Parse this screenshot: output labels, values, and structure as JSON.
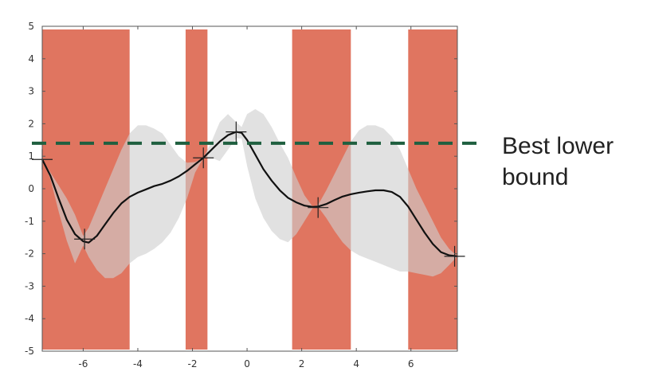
{
  "chart_data": {
    "type": "line",
    "xlim": [
      -7.5,
      7.7
    ],
    "ylim": [
      -5,
      5
    ],
    "xticks": [
      -6,
      -4,
      -2,
      0,
      2,
      4,
      6
    ],
    "yticks": [
      5,
      4,
      3,
      2,
      1,
      0,
      -1,
      -2,
      -3,
      -4,
      -5
    ],
    "grid": false,
    "legend": "none",
    "pruned_regions": [
      {
        "x0": -7.5,
        "x1": -4.3
      },
      {
        "x0": -2.25,
        "x1": -1.45
      },
      {
        "x0": 1.65,
        "x1": 3.8
      },
      {
        "x0": 5.9,
        "x1": 7.7
      }
    ],
    "mean_curve": {
      "x": [
        -7.5,
        -7.2,
        -6.9,
        -6.6,
        -6.3,
        -6.0,
        -5.8,
        -5.5,
        -5.2,
        -4.9,
        -4.6,
        -4.3,
        -4.0,
        -3.7,
        -3.4,
        -3.1,
        -2.8,
        -2.5,
        -2.2,
        -1.9,
        -1.6,
        -1.3,
        -1.0,
        -0.7,
        -0.4,
        -0.2,
        0.0,
        0.3,
        0.6,
        0.9,
        1.2,
        1.5,
        1.8,
        2.1,
        2.4,
        2.6,
        2.9,
        3.2,
        3.5,
        3.8,
        4.1,
        4.4,
        4.7,
        5.0,
        5.3,
        5.6,
        5.9,
        6.2,
        6.5,
        6.8,
        7.1,
        7.4,
        7.7
      ],
      "y": [
        0.9,
        0.4,
        -0.3,
        -0.95,
        -1.4,
        -1.62,
        -1.66,
        -1.45,
        -1.1,
        -0.75,
        -0.45,
        -0.25,
        -0.12,
        -0.02,
        0.08,
        0.15,
        0.25,
        0.38,
        0.55,
        0.75,
        0.95,
        1.2,
        1.45,
        1.65,
        1.75,
        1.72,
        1.5,
        1.05,
        0.6,
        0.25,
        -0.05,
        -0.28,
        -0.42,
        -0.52,
        -0.56,
        -0.55,
        -0.47,
        -0.35,
        -0.24,
        -0.17,
        -0.12,
        -0.08,
        -0.05,
        -0.05,
        -0.1,
        -0.25,
        -0.55,
        -0.95,
        -1.35,
        -1.7,
        -1.95,
        -2.05,
        -2.08
      ]
    },
    "uncertainty_band": {
      "x": [
        -7.5,
        -7.2,
        -6.9,
        -6.6,
        -6.3,
        -6.0,
        -5.8,
        -5.5,
        -5.2,
        -4.9,
        -4.6,
        -4.3,
        -4.0,
        -3.7,
        -3.4,
        -3.1,
        -2.8,
        -2.5,
        -2.2,
        -1.9,
        -1.6,
        -1.3,
        -1.0,
        -0.7,
        -0.4,
        -0.2,
        0.0,
        0.3,
        0.6,
        0.9,
        1.2,
        1.5,
        1.8,
        2.1,
        2.4,
        2.6,
        2.9,
        3.2,
        3.5,
        3.8,
        4.1,
        4.4,
        4.7,
        5.0,
        5.3,
        5.6,
        5.9,
        6.2,
        6.5,
        6.8,
        7.1,
        7.4,
        7.7
      ],
      "upper": [
        0.9,
        0.5,
        0.1,
        -0.3,
        -0.8,
        -1.45,
        -1.2,
        -0.6,
        0.0,
        0.6,
        1.2,
        1.7,
        1.95,
        1.95,
        1.85,
        1.7,
        1.35,
        1.0,
        0.8,
        0.82,
        0.95,
        1.45,
        2.05,
        2.3,
        2.05,
        1.9,
        2.3,
        2.45,
        2.3,
        1.9,
        1.4,
        0.95,
        0.35,
        -0.2,
        -0.55,
        -0.5,
        -0.05,
        0.45,
        0.95,
        1.45,
        1.8,
        1.95,
        1.95,
        1.85,
        1.6,
        1.2,
        0.6,
        0.0,
        -0.5,
        -1.0,
        -1.5,
        -1.85,
        -2.08
      ],
      "lower": [
        0.9,
        0.3,
        -0.7,
        -1.6,
        -2.3,
        -1.75,
        -2.1,
        -2.5,
        -2.75,
        -2.75,
        -2.6,
        -2.3,
        -2.1,
        -2.0,
        -1.85,
        -1.65,
        -1.35,
        -0.9,
        -0.3,
        0.5,
        0.95,
        0.95,
        0.85,
        1.2,
        1.55,
        1.55,
        0.7,
        -0.3,
        -0.9,
        -1.3,
        -1.55,
        -1.65,
        -1.4,
        -1.0,
        -0.6,
        -0.56,
        -0.9,
        -1.3,
        -1.65,
        -1.9,
        -2.05,
        -2.15,
        -2.25,
        -2.35,
        -2.45,
        -2.55,
        -2.55,
        -2.6,
        -2.65,
        -2.7,
        -2.6,
        -2.35,
        -2.08
      ]
    },
    "sample_points": [
      {
        "x": -7.5,
        "y": 0.9
      },
      {
        "x": -5.95,
        "y": -1.55
      },
      {
        "x": -1.6,
        "y": 0.95
      },
      {
        "x": -0.4,
        "y": 1.75
      },
      {
        "x": 2.6,
        "y": -0.58
      },
      {
        "x": 7.6,
        "y": -2.08
      }
    ],
    "threshold_line": {
      "y": 1.4
    },
    "annotation": {
      "line1": "Best lower",
      "line2": "bound"
    },
    "colors": {
      "region_fill": "#e07560",
      "band_fill": "#cfcfcf",
      "mean_line": "#111111",
      "threshold_line": "#1f5f3f",
      "axes": "#555555"
    }
  }
}
